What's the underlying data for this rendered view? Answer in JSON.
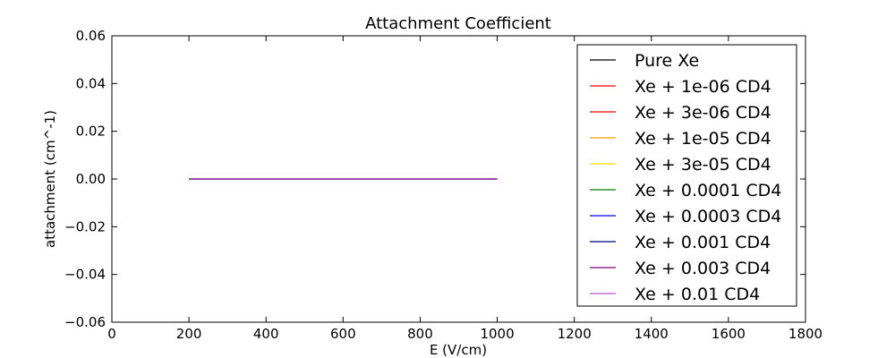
{
  "chart_data": {
    "type": "line",
    "title": "Attachment Coefficient",
    "xlabel": "E (V/cm)",
    "ylabel": "attachment (cm^-1)",
    "xlim": [
      0,
      1800
    ],
    "ylim": [
      -0.06,
      0.06
    ],
    "xticks": [
      0,
      200,
      400,
      600,
      800,
      1000,
      1200,
      1400,
      1600,
      1800
    ],
    "yticks": [
      -0.06,
      -0.04,
      -0.02,
      0.0,
      0.02,
      0.04,
      0.06
    ],
    "ytick_labels": [
      "−0.06",
      "−0.04",
      "−0.02",
      "0.00",
      "0.02",
      "0.04",
      "0.06"
    ],
    "grid": false,
    "legend_position": "top-right",
    "series": [
      {
        "name": "Pure Xe",
        "color": "#000000",
        "x": [
          200,
          1000
        ],
        "y": [
          0,
          0
        ]
      },
      {
        "name": "Xe + 1e-06 CD4",
        "color": "#ff0000",
        "x": [
          200,
          1000
        ],
        "y": [
          0,
          0
        ]
      },
      {
        "name": "Xe + 3e-06 CD4",
        "color": "#ee0000",
        "x": [
          200,
          1000
        ],
        "y": [
          0,
          0
        ]
      },
      {
        "name": "Xe + 1e-05 CD4",
        "color": "#ffa500",
        "x": [
          200,
          1000
        ],
        "y": [
          0,
          0
        ]
      },
      {
        "name": "Xe + 3e-05 CD4",
        "color": "#ffd700",
        "x": [
          200,
          1000
        ],
        "y": [
          0,
          0
        ]
      },
      {
        "name": "Xe + 0.0001 CD4",
        "color": "#008000",
        "x": [
          200,
          1000
        ],
        "y": [
          0,
          0
        ]
      },
      {
        "name": "Xe + 0.0003 CD4",
        "color": "#0000ff",
        "x": [
          200,
          1000
        ],
        "y": [
          0,
          0
        ]
      },
      {
        "name": "Xe + 0.001 CD4",
        "color": "#000080",
        "x": [
          200,
          1000
        ],
        "y": [
          0,
          0
        ]
      },
      {
        "name": "Xe + 0.003 CD4",
        "color": "#800080",
        "x": [
          200,
          1000
        ],
        "y": [
          0,
          0
        ]
      },
      {
        "name": "Xe + 0.01 CD4",
        "color": "#ba55d3",
        "x": [
          200,
          1000
        ],
        "y": [
          0,
          0
        ]
      }
    ]
  }
}
